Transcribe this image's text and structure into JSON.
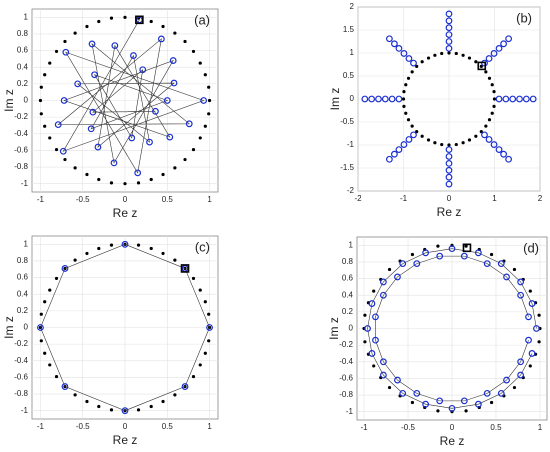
{
  "chart_data": [
    {
      "type": "scatter",
      "label": "(a)",
      "xlabel": "Re z",
      "ylabel": "Im z",
      "xlim": [
        -1.1,
        1.1
      ],
      "ylim": [
        -1.1,
        1.1
      ],
      "xticks": [
        -1,
        -0.5,
        0,
        0.5,
        1
      ],
      "yticks": [
        -1,
        -0.8,
        -0.6,
        -0.4,
        -0.2,
        0,
        0.2,
        0.4,
        0.6,
        0.8,
        1
      ],
      "grid": true,
      "series": [
        {
          "color": "#000000",
          "marker": "dot",
          "connect": false,
          "x": [
            1,
            0.99,
            0.95,
            0.89,
            0.81,
            0.71,
            0.59,
            0.45,
            0.31,
            0.16,
            0,
            -0.16,
            -0.31,
            -0.45,
            -0.59,
            -0.71,
            -0.81,
            -0.89,
            -0.95,
            -0.99,
            -1,
            -0.99,
            -0.95,
            -0.89,
            -0.81,
            -0.71,
            -0.59,
            -0.45,
            -0.31,
            -0.16,
            0,
            0.16,
            0.31,
            0.45,
            0.59,
            0.71,
            0.81,
            0.89,
            0.95,
            0.99
          ],
          "y": [
            0,
            0.16,
            0.31,
            0.45,
            0.59,
            0.71,
            0.81,
            0.89,
            0.95,
            0.99,
            1,
            0.99,
            0.95,
            0.89,
            0.81,
            0.71,
            0.59,
            0.45,
            0.31,
            0.16,
            0,
            -0.16,
            -0.31,
            -0.45,
            -0.59,
            -0.71,
            -0.81,
            -0.89,
            -0.95,
            -0.99,
            -1,
            -0.99,
            -0.95,
            -0.89,
            -0.81,
            -0.71,
            -0.59,
            -0.45,
            -0.31,
            -0.16
          ]
        },
        {
          "color": "#1a2fd0",
          "marker": "circle",
          "connect": true,
          "x": [
            0.17,
            -0.73,
            0.93,
            -0.7,
            0.15,
            0.43,
            -0.79,
            0.76,
            -0.39,
            -0.13,
            0.57,
            -0.72,
            0.53,
            -0.12,
            -0.32,
            0.58,
            -0.56,
            0.29,
            0.1,
            -0.4,
            0.5,
            -0.36,
            0.08,
            0.21,
            -0.38,
            0.36
          ],
          "y": [
            0.97,
            -0.61,
            0,
            0.58,
            -0.87,
            0.74,
            -0.29,
            -0.28,
            0.68,
            -0.75,
            0.48,
            0,
            -0.44,
            0.66,
            -0.56,
            0.21,
            0.2,
            -0.5,
            0.54,
            -0.34,
            0,
            0.31,
            -0.45,
            0.37,
            -0.14,
            -0.13
          ]
        },
        {
          "color": "#000000",
          "marker": "square",
          "connect": false,
          "x": [
            0.17
          ],
          "y": [
            0.97
          ]
        }
      ]
    },
    {
      "type": "scatter",
      "label": "(b)",
      "xlabel": "Re z",
      "ylabel": "Im z",
      "xlim": [
        -2,
        2
      ],
      "ylim": [
        -2,
        2
      ],
      "xticks": [
        -2,
        -1,
        0,
        1,
        2
      ],
      "yticks": [
        -2,
        -1.5,
        -1,
        -0.5,
        0,
        0.5,
        1,
        1.5,
        2
      ],
      "grid": true,
      "series": [
        {
          "color": "#000000",
          "marker": "dot",
          "connect": false,
          "x": [
            1,
            0.99,
            0.95,
            0.89,
            0.81,
            0.71,
            0.59,
            0.45,
            0.31,
            0.16,
            0,
            -0.16,
            -0.31,
            -0.45,
            -0.59,
            -0.71,
            -0.81,
            -0.89,
            -0.95,
            -0.99,
            -1,
            -0.99,
            -0.95,
            -0.89,
            -0.81,
            -0.71,
            -0.59,
            -0.45,
            -0.31,
            -0.16,
            0,
            0.16,
            0.31,
            0.45,
            0.59,
            0.71,
            0.81,
            0.89,
            0.95,
            0.99
          ],
          "y": [
            0,
            0.16,
            0.31,
            0.45,
            0.59,
            0.71,
            0.81,
            0.89,
            0.95,
            0.99,
            1,
            0.99,
            0.95,
            0.89,
            0.81,
            0.71,
            0.59,
            0.45,
            0.31,
            0.16,
            0,
            -0.16,
            -0.31,
            -0.45,
            -0.59,
            -0.71,
            -0.81,
            -0.89,
            -0.95,
            -0.99,
            -1,
            -0.99,
            -0.95,
            -0.89,
            -0.81,
            -0.71,
            -0.59,
            -0.45,
            -0.31,
            -0.16
          ]
        },
        {
          "color": "#1a2fd0",
          "marker": "circle",
          "connect": false,
          "x": [
            1.1,
            1.25,
            1.4,
            1.55,
            1.7,
            1.85,
            0.78,
            0.88,
            0.99,
            1.1,
            1.2,
            1.31,
            0,
            0,
            0,
            0,
            0,
            0,
            -0.78,
            -0.88,
            -0.99,
            -1.1,
            -1.2,
            -1.31,
            -1.1,
            -1.25,
            -1.4,
            -1.55,
            -1.7,
            -1.85,
            -0.78,
            -0.88,
            -0.99,
            -1.1,
            -1.2,
            -1.31,
            0,
            0,
            0,
            0,
            0,
            0,
            0.78,
            0.88,
            0.99,
            1.1,
            1.2,
            1.31
          ],
          "y": [
            0,
            0,
            0,
            0,
            0,
            0,
            0.78,
            0.88,
            0.99,
            1.1,
            1.2,
            1.31,
            1.1,
            1.25,
            1.4,
            1.55,
            1.7,
            1.85,
            0.78,
            0.88,
            0.99,
            1.1,
            1.2,
            1.31,
            0,
            0,
            0,
            0,
            0,
            0,
            -0.78,
            -0.88,
            -0.99,
            -1.1,
            -1.2,
            -1.31,
            -1.1,
            -1.25,
            -1.4,
            -1.55,
            -1.7,
            -1.85,
            -0.78,
            -0.88,
            -0.99,
            -1.1,
            -1.2,
            -1.31
          ]
        },
        {
          "color": "#000000",
          "marker": "square",
          "connect": false,
          "x": [
            0.72
          ],
          "y": [
            0.72
          ]
        }
      ]
    },
    {
      "type": "scatter",
      "label": "(c)",
      "xlabel": "Re z",
      "ylabel": "Im z",
      "xlim": [
        -1.1,
        1.1
      ],
      "ylim": [
        -1.1,
        1.1
      ],
      "xticks": [
        -1,
        -0.5,
        0,
        0.5,
        1
      ],
      "yticks": [
        -1,
        -0.8,
        -0.6,
        -0.4,
        -0.2,
        0,
        0.2,
        0.4,
        0.6,
        0.8,
        1
      ],
      "grid": true,
      "series": [
        {
          "color": "#000000",
          "marker": "dot",
          "connect": false,
          "x": [
            1,
            0.99,
            0.95,
            0.89,
            0.81,
            0.71,
            0.59,
            0.45,
            0.31,
            0.16,
            0,
            -0.16,
            -0.31,
            -0.45,
            -0.59,
            -0.71,
            -0.81,
            -0.89,
            -0.95,
            -0.99,
            -1,
            -0.99,
            -0.95,
            -0.89,
            -0.81,
            -0.71,
            -0.59,
            -0.45,
            -0.31,
            -0.16,
            0,
            0.16,
            0.31,
            0.45,
            0.59,
            0.71,
            0.81,
            0.89,
            0.95,
            0.99
          ],
          "y": [
            0,
            0.16,
            0.31,
            0.45,
            0.59,
            0.71,
            0.81,
            0.89,
            0.95,
            0.99,
            1,
            0.99,
            0.95,
            0.89,
            0.81,
            0.71,
            0.59,
            0.45,
            0.31,
            0.16,
            0,
            -0.16,
            -0.31,
            -0.45,
            -0.59,
            -0.71,
            -0.81,
            -0.89,
            -0.95,
            -0.99,
            -1,
            -0.99,
            -0.95,
            -0.89,
            -0.81,
            -0.71,
            -0.59,
            -0.45,
            -0.31,
            -0.16
          ]
        },
        {
          "color": "#1a2fd0",
          "marker": "circle",
          "connect": true,
          "x": [
            0.71,
            0,
            -0.71,
            -1,
            -0.71,
            0,
            0.71,
            1,
            0.71
          ],
          "y": [
            0.71,
            1,
            0.71,
            0,
            -0.71,
            -1,
            -0.71,
            0,
            0.71
          ]
        },
        {
          "color": "#000000",
          "marker": "square",
          "connect": false,
          "x": [
            0.71
          ],
          "y": [
            0.71
          ]
        }
      ]
    },
    {
      "type": "scatter",
      "label": "(d)",
      "xlabel": "Re z",
      "ylabel": "Im z",
      "xlim": [
        -1.08,
        1.08
      ],
      "ylim": [
        -1.1,
        1.1
      ],
      "xticks": [
        -1,
        -0.5,
        0,
        0.5,
        1
      ],
      "yticks": [
        -1,
        -0.8,
        -0.6,
        -0.4,
        -0.2,
        0,
        0.2,
        0.4,
        0.6,
        0.8,
        1
      ],
      "grid": true,
      "series": [
        {
          "color": "#000000",
          "marker": "dot",
          "connect": false,
          "x": [
            1,
            0.99,
            0.95,
            0.89,
            0.81,
            0.71,
            0.59,
            0.45,
            0.31,
            0.16,
            0,
            -0.16,
            -0.31,
            -0.45,
            -0.59,
            -0.71,
            -0.81,
            -0.89,
            -0.95,
            -0.99,
            -1,
            -0.99,
            -0.95,
            -0.89,
            -0.81,
            -0.71,
            -0.59,
            -0.45,
            -0.31,
            -0.16,
            0,
            0.16,
            0.31,
            0.45,
            0.59,
            0.71,
            0.81,
            0.89,
            0.95,
            0.99
          ],
          "y": [
            0,
            0.16,
            0.31,
            0.45,
            0.59,
            0.71,
            0.81,
            0.89,
            0.95,
            0.99,
            1,
            0.99,
            0.95,
            0.89,
            0.81,
            0.71,
            0.59,
            0.45,
            0.31,
            0.16,
            0,
            -0.16,
            -0.31,
            -0.45,
            -0.59,
            -0.71,
            -0.81,
            -0.89,
            -0.95,
            -0.99,
            -1,
            -0.99,
            -0.95,
            -0.89,
            -0.81,
            -0.71,
            -0.59,
            -0.45,
            -0.31,
            -0.16
          ]
        },
        {
          "color": "#1a2fd0",
          "marker": "circle",
          "connect": true,
          "x": [
            0.96,
            0.91,
            0.78,
            0.56,
            0.3,
            0,
            -0.3,
            -0.56,
            -0.78,
            -0.91,
            -0.96,
            -0.91,
            -0.78,
            -0.56,
            -0.3,
            0,
            0.3,
            0.56,
            0.78,
            0.91
          ],
          "y": [
            0,
            0.3,
            0.56,
            0.78,
            0.91,
            0.96,
            0.91,
            0.78,
            0.56,
            0.3,
            0,
            -0.3,
            -0.56,
            -0.78,
            -0.91,
            -0.96,
            -0.91,
            -0.78,
            -0.56,
            -0.3
          ]
        },
        {
          "color": "#1a2fd0",
          "marker": "circle",
          "connect": true,
          "x": [
            0.87,
            0.78,
            0.62,
            0.4,
            0.14,
            -0.14,
            -0.4,
            -0.62,
            -0.78,
            -0.87,
            -0.87,
            -0.78,
            -0.62,
            -0.4,
            -0.14,
            0.14,
            0.4,
            0.62,
            0.78,
            0.87
          ],
          "y": [
            0.14,
            0.4,
            0.62,
            0.78,
            0.87,
            0.87,
            0.78,
            0.62,
            0.4,
            0.14,
            -0.14,
            -0.4,
            -0.62,
            -0.78,
            -0.87,
            -0.87,
            -0.78,
            -0.62,
            -0.4,
            -0.14
          ]
        },
        {
          "color": "#000000",
          "marker": "square",
          "connect": false,
          "x": [
            0.17
          ],
          "y": [
            0.97
          ]
        }
      ]
    }
  ]
}
